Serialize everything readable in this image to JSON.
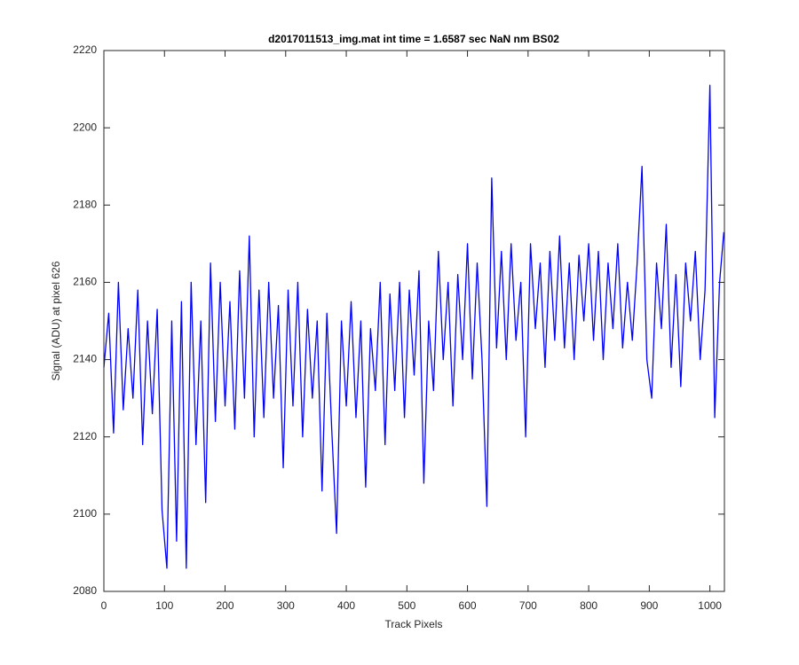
{
  "chart_data": {
    "type": "line",
    "title": "d2017011513_img.mat int time = 1.6587 sec  NaN nm BS02",
    "x_label": "Track Pixels",
    "y_label": "Signal (ADU) at pixel 626",
    "xlim": [
      0,
      1024
    ],
    "xticks": [
      0,
      100,
      200,
      300,
      400,
      500,
      600,
      700,
      800,
      900,
      1000
    ],
    "ylim": [
      2080,
      2220
    ],
    "yticks": [
      2080,
      2100,
      2120,
      2140,
      2160,
      2180,
      2200,
      2220
    ],
    "grid": false,
    "x": [
      0,
      8,
      16,
      24,
      32,
      40,
      48,
      56,
      64,
      72,
      80,
      88,
      96,
      104,
      112,
      120,
      128,
      136,
      144,
      152,
      160,
      168,
      176,
      184,
      192,
      200,
      208,
      216,
      224,
      232,
      240,
      248,
      256,
      264,
      272,
      280,
      288,
      296,
      304,
      312,
      320,
      328,
      336,
      344,
      352,
      360,
      368,
      376,
      384,
      392,
      400,
      408,
      416,
      424,
      432,
      440,
      448,
      456,
      464,
      472,
      480,
      488,
      496,
      504,
      512,
      520,
      528,
      536,
      544,
      552,
      560,
      568,
      576,
      584,
      592,
      600,
      608,
      616,
      624,
      632,
      640,
      648,
      656,
      664,
      672,
      680,
      688,
      696,
      704,
      712,
      720,
      728,
      736,
      744,
      752,
      760,
      768,
      776,
      784,
      792,
      800,
      808,
      816,
      824,
      832,
      840,
      848,
      856,
      864,
      872,
      880,
      888,
      896,
      904,
      912,
      920,
      928,
      936,
      944,
      952,
      960,
      968,
      976,
      984,
      992,
      1000,
      1008,
      1016,
      1023
    ],
    "series": [
      {
        "color": "#0000ff",
        "values": [
          2138,
          2152,
          2121,
          2160,
          2127,
          2148,
          2130,
          2158,
          2118,
          2150,
          2126,
          2153,
          2101,
          2086,
          2150,
          2093,
          2155,
          2086,
          2160,
          2118,
          2150,
          2103,
          2165,
          2124,
          2160,
          2128,
          2155,
          2122,
          2163,
          2130,
          2172,
          2120,
          2158,
          2125,
          2160,
          2130,
          2154,
          2112,
          2158,
          2128,
          2160,
          2120,
          2153,
          2130,
          2150,
          2106,
          2152,
          2122,
          2095,
          2150,
          2128,
          2155,
          2125,
          2150,
          2107,
          2148,
          2132,
          2160,
          2118,
          2157,
          2132,
          2160,
          2125,
          2158,
          2136,
          2163,
          2108,
          2150,
          2132,
          2168,
          2140,
          2160,
          2128,
          2162,
          2140,
          2170,
          2135,
          2165,
          2140,
          2102,
          2187,
          2143,
          2168,
          2140,
          2170,
          2145,
          2160,
          2120,
          2170,
          2148,
          2165,
          2138,
          2168,
          2145,
          2172,
          2143,
          2165,
          2140,
          2167,
          2150,
          2170,
          2145,
          2168,
          2140,
          2165,
          2148,
          2170,
          2143,
          2160,
          2145,
          2165,
          2190,
          2140,
          2130,
          2165,
          2148,
          2175,
          2138,
          2162,
          2133,
          2165,
          2150,
          2168,
          2140,
          2158,
          2211,
          2125,
          2160,
          2173
        ]
      }
    ]
  }
}
